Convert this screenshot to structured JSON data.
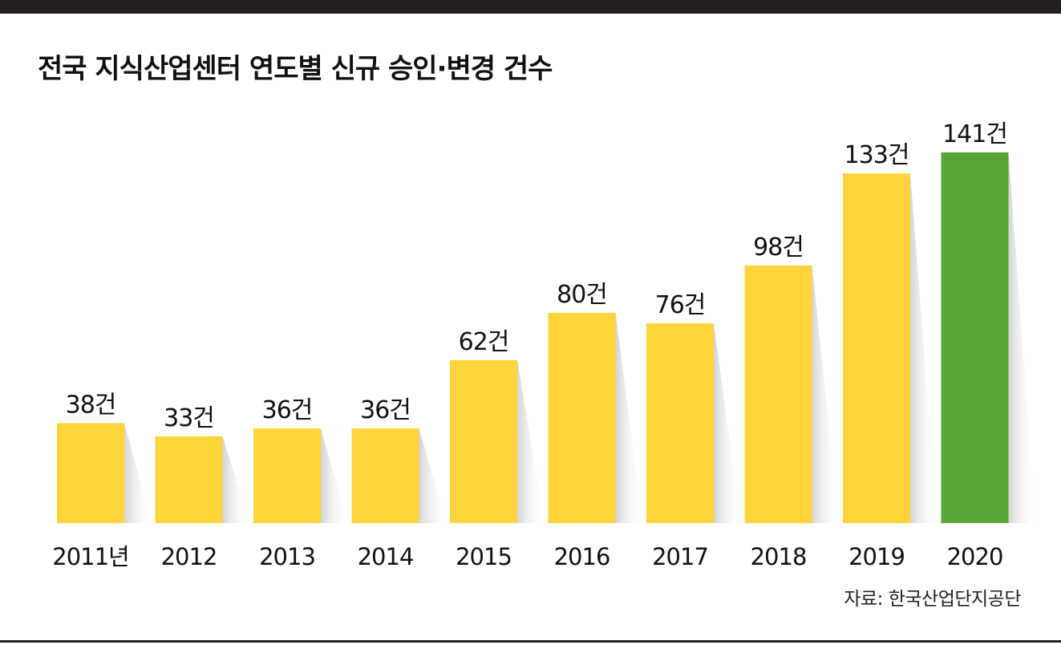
{
  "title": "전국 지식산업센터 연도별 신규 승인·변경 건수",
  "source": "자료: 한국산업단지공단",
  "colors": {
    "bar": "#FDD43A",
    "highlight": "#5AA537",
    "shadow": "#d8d8d8",
    "rule": "#231f20"
  },
  "chart_data": {
    "type": "bar",
    "categories": [
      "2011년",
      "2012",
      "2013",
      "2014",
      "2015",
      "2016",
      "2017",
      "2018",
      "2019",
      "2020"
    ],
    "values": [
      38,
      33,
      36,
      36,
      62,
      80,
      76,
      98,
      133,
      141
    ],
    "value_labels": [
      "38건",
      "33건",
      "36건",
      "36건",
      "62건",
      "80건",
      "76건",
      "98건",
      "133건",
      "141건"
    ],
    "highlight_index": 9,
    "title": "전국 지식산업센터 연도별 신규 승인·변경 건수",
    "xlabel": "",
    "ylabel": "",
    "ylim": [
      0,
      141
    ],
    "grid": false,
    "legend": "none"
  }
}
